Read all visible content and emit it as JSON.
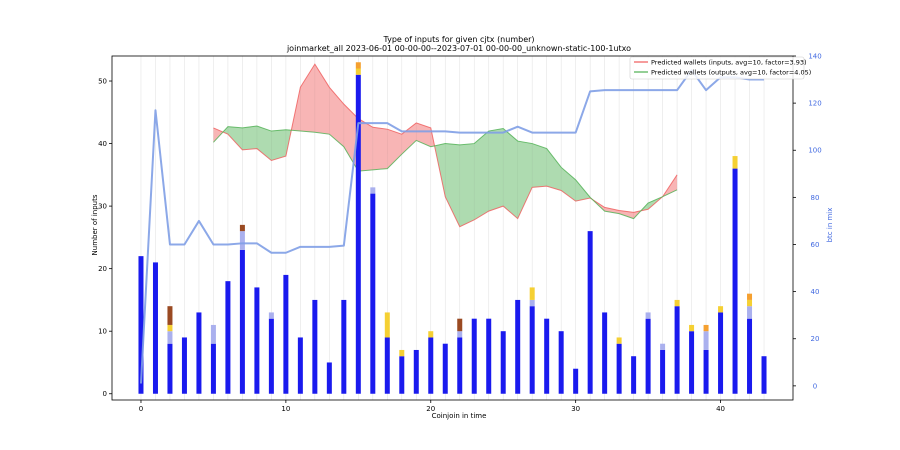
{
  "chart_data": {
    "type": "bar",
    "title": "Type of inputs for given cjtx (number)",
    "subtitle": "joinmarket_all 2023-06-01 00-00-00--2023-07-01 00-00-00_unknown-static-100-1utxo",
    "xlabel": "Coinjoin in time",
    "ylabel": "Number of inputs",
    "y2label": "btc in mix",
    "xlim": [
      -2,
      45
    ],
    "ylim": [
      -1,
      54
    ],
    "y2lim": [
      -6,
      140
    ],
    "xticks": [
      0,
      10,
      20,
      30,
      40
    ],
    "yticks": [
      0,
      10,
      20,
      30,
      40,
      50
    ],
    "y2ticks": [
      0,
      20,
      40,
      60,
      80,
      100,
      120,
      140
    ],
    "grid": "vertical",
    "legend_position": "top-right",
    "x": [
      0,
      1,
      2,
      3,
      4,
      5,
      6,
      7,
      8,
      9,
      10,
      11,
      12,
      13,
      14,
      15,
      16,
      17,
      18,
      19,
      20,
      21,
      22,
      23,
      24,
      25,
      26,
      27,
      28,
      29,
      30,
      31,
      32,
      33,
      34,
      35,
      36,
      37,
      38,
      39,
      40,
      41,
      42,
      43
    ],
    "bar_series": [
      {
        "color": "#1a1aee",
        "values": [
          22,
          21,
          8,
          9,
          13,
          8,
          18,
          23,
          17,
          12,
          19,
          9,
          15,
          5,
          15,
          51,
          32,
          9,
          6,
          7,
          9,
          8,
          9,
          12,
          12,
          10,
          15,
          14,
          12,
          10,
          4,
          26,
          13,
          8,
          6,
          12,
          7,
          14,
          10,
          7,
          13,
          36,
          12,
          6
        ]
      },
      {
        "color": "#aab0ee",
        "values": [
          0,
          0,
          2,
          0,
          0,
          3,
          0,
          3,
          0,
          1,
          0,
          0,
          0,
          0,
          0,
          0,
          1,
          0,
          0,
          0,
          0,
          0,
          1,
          0,
          0,
          0,
          0,
          1,
          0,
          0,
          0,
          0,
          0,
          0,
          0,
          1,
          1,
          0,
          0,
          3,
          0,
          0,
          2,
          0
        ]
      },
      {
        "color": "#f5d033",
        "values": [
          0,
          0,
          1,
          0,
          0,
          0,
          0,
          0,
          0,
          0,
          0,
          0,
          0,
          0,
          0,
          1,
          0,
          4,
          1,
          0,
          1,
          0,
          0,
          0,
          0,
          0,
          0,
          2,
          0,
          0,
          0,
          0,
          0,
          1,
          0,
          0,
          0,
          1,
          1,
          0,
          1,
          2,
          1,
          0
        ]
      },
      {
        "color": "#f5a030",
        "values": [
          0,
          0,
          0,
          0,
          0,
          0,
          0,
          0,
          0,
          0,
          0,
          0,
          0,
          0,
          0,
          1,
          0,
          0,
          0,
          0,
          0,
          0,
          0,
          0,
          0,
          0,
          0,
          0,
          0,
          0,
          0,
          0,
          0,
          0,
          0,
          0,
          0,
          0,
          0,
          1,
          0,
          0,
          1,
          0
        ]
      },
      {
        "color": "#9a4a22",
        "values": [
          0,
          0,
          3,
          0,
          0,
          0,
          0,
          1,
          0,
          0,
          0,
          0,
          0,
          0,
          0,
          0,
          0,
          0,
          0,
          0,
          0,
          0,
          2,
          0,
          0,
          0,
          0,
          0,
          0,
          0,
          0,
          0,
          0,
          0,
          0,
          0,
          0,
          0,
          0,
          0,
          0,
          0,
          0,
          0
        ]
      }
    ],
    "band_x": [
      5,
      6,
      7,
      8,
      9,
      10,
      11,
      12,
      13,
      14,
      15,
      16,
      17,
      18,
      19,
      20,
      21,
      22,
      23,
      24,
      25,
      26,
      27,
      28,
      29,
      30,
      31,
      32,
      33,
      34,
      35,
      36,
      37
    ],
    "inputs_prediction": [
      42.5,
      41.5,
      39,
      39.2,
      37.3,
      38,
      49,
      52.7,
      49,
      46.3,
      44,
      42.6,
      42.3,
      41.5,
      43.3,
      42.5,
      31.5,
      26.7,
      27.8,
      29.2,
      30,
      28,
      33,
      33.2,
      32.5,
      30.8,
      31.3,
      29.8,
      29.3,
      29,
      29.5,
      31.5,
      35
    ],
    "outputs_prediction": [
      40.2,
      42.7,
      42.5,
      42.8,
      42,
      42.2,
      42,
      41.8,
      41.5,
      39.5,
      35.6,
      35.8,
      36,
      38.3,
      40.5,
      39.5,
      40,
      39.8,
      40,
      42,
      42.4,
      40.4,
      40,
      39.2,
      36.2,
      34.2,
      31.4,
      29.2,
      28.8,
      28,
      30.5,
      31.5,
      32.6
    ],
    "legend": [
      {
        "label": "Predicted wallets (inputs, avg=10, factor=3.93)",
        "color": "#ef5a5a"
      },
      {
        "label": "Predicted wallets (outputs, avg=10, factor=4.05)",
        "color": "#4caf50"
      }
    ],
    "btc_in_mix": {
      "color": "#7f9fe6",
      "x": [
        0,
        1,
        2,
        3,
        4,
        5,
        6,
        7,
        8,
        9,
        10,
        11,
        12,
        13,
        14,
        15,
        16,
        17,
        18,
        19,
        20,
        21,
        22,
        23,
        24,
        25,
        26,
        27,
        28,
        29,
        30,
        31,
        32,
        33,
        34,
        35,
        36,
        37,
        38,
        39,
        40,
        41,
        42,
        43
      ],
      "values": [
        1,
        117,
        60,
        60,
        70,
        60,
        60,
        60.5,
        60.5,
        56.5,
        56.5,
        59,
        59,
        59,
        59.5,
        111.5,
        111.5,
        111.5,
        108,
        108,
        108,
        108,
        107.5,
        107.5,
        107.5,
        107.5,
        110,
        107.5,
        107.5,
        107.5,
        107.5,
        125,
        125.5,
        125.5,
        125.5,
        125.5,
        125.5,
        125.5,
        134,
        125.5,
        131,
        131,
        130,
        130
      ]
    }
  }
}
